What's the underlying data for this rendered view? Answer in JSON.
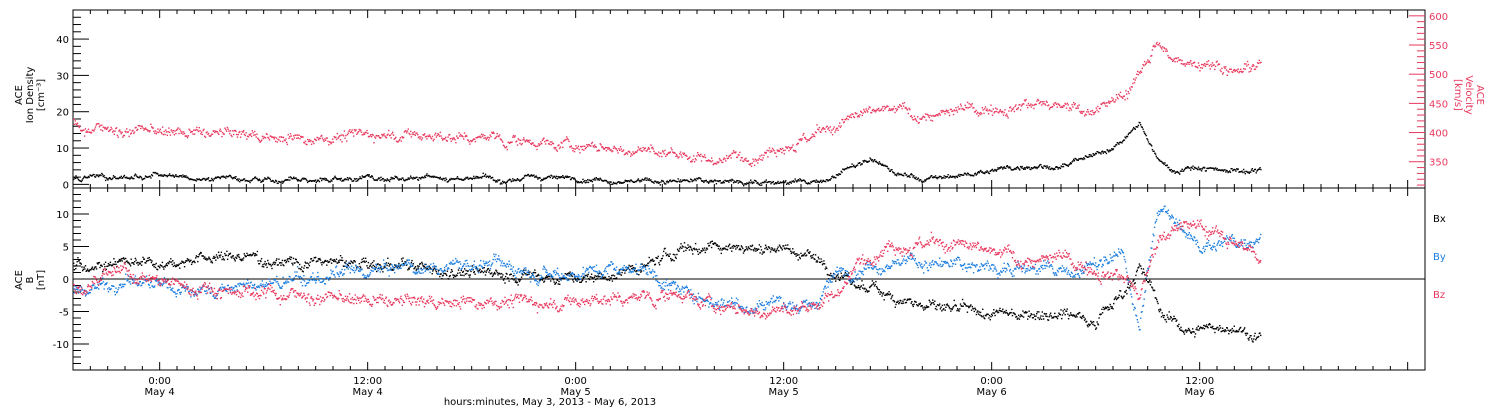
{
  "figure": {
    "x_axis_title": "hours:minutes, May  3, 2013 - May  6, 2013",
    "x_ticks": [
      {
        "time": "0:00",
        "date": "May 4",
        "hour": 24
      },
      {
        "time": "12:00",
        "date": "May 4",
        "hour": 36
      },
      {
        "time": "0:00",
        "date": "May 5",
        "hour": 48
      },
      {
        "time": "12:00",
        "date": "May 5",
        "hour": 60
      },
      {
        "time": "0:00",
        "date": "May 6",
        "hour": 72
      },
      {
        "time": "12:00",
        "date": "May 6",
        "hour": 84
      }
    ],
    "x_range_hours": [
      19,
      97
    ],
    "colors": {
      "black": "#000000",
      "pink": "#e8385e",
      "blue": "#1e7fe0"
    }
  },
  "chart_data": [
    {
      "type": "scatter",
      "panel": "top",
      "title": "",
      "ylabel_left": [
        "ACE",
        "Ion Density",
        "[cm⁻³]"
      ],
      "ylabel_right": [
        "ACE",
        "Velocity",
        "[km/s]"
      ],
      "ylim_left": [
        -1,
        48
      ],
      "ylim_right": [
        305,
        610
      ],
      "yticks_left": [
        0,
        10,
        20,
        30,
        40
      ],
      "yticks_right": [
        350,
        400,
        450,
        500,
        550,
        600
      ],
      "series": [
        {
          "axis": "left",
          "color": "#000000",
          "x": [
            19,
            22,
            25,
            28,
            31,
            34,
            37,
            40,
            43,
            46,
            48,
            50,
            52,
            54,
            56,
            58,
            60,
            62,
            63.5,
            65,
            66.5,
            68,
            70,
            72,
            74,
            76,
            78,
            79.5,
            80.5,
            81.5,
            82.5,
            84,
            86,
            87.5
          ],
          "y": [
            1.5,
            2,
            2.5,
            2,
            1.5,
            1.5,
            2,
            2,
            1.5,
            2,
            2,
            1.5,
            1,
            1,
            1,
            1,
            0.8,
            0.6,
            4,
            7,
            3,
            1.5,
            2.5,
            4,
            5.5,
            5,
            8,
            12,
            17,
            7,
            4,
            5,
            4,
            4
          ]
        },
        {
          "axis": "right",
          "color": "#e8385e",
          "x": [
            19,
            20,
            22,
            25,
            28,
            31,
            34,
            37,
            40,
            43,
            46,
            48,
            50,
            52,
            54,
            56,
            58,
            60,
            61.5,
            63,
            64.5,
            66,
            68,
            70,
            72,
            74,
            76,
            78,
            79.5,
            80.5,
            81.5,
            82.5,
            84,
            86,
            87.5
          ],
          "y": [
            420,
            410,
            405,
            400,
            398,
            392,
            395,
            400,
            393,
            390,
            385,
            378,
            373,
            368,
            365,
            355,
            362,
            385,
            392,
            410,
            430,
            440,
            430,
            435,
            445,
            455,
            440,
            445,
            460,
            500,
            560,
            520,
            525,
            510,
            520
          ]
        }
      ]
    },
    {
      "type": "scatter",
      "panel": "bottom",
      "title": "",
      "ylabel_left": [
        "ACE",
        "B",
        "[nT]"
      ],
      "ylim": [
        -14,
        14
      ],
      "yticks": [
        -10,
        -5,
        0,
        5,
        10
      ],
      "zero_line": true,
      "legend": [
        "Bx",
        "By",
        "Bz"
      ],
      "legend_placement": "right",
      "series": [
        {
          "name": "Bx",
          "color": "#000000",
          "x": [
            19,
            22,
            25,
            28,
            31,
            34,
            37,
            40,
            43,
            46,
            48,
            50,
            52,
            54,
            56,
            58,
            60,
            62,
            64,
            66,
            68,
            70,
            72,
            74,
            76,
            78,
            79.5,
            80.5,
            82,
            83.5,
            85,
            86.5,
            87.5
          ],
          "y": [
            2,
            3,
            3,
            3.5,
            3,
            2.5,
            2,
            1.5,
            1,
            0.5,
            0,
            0.5,
            2,
            4.5,
            5.5,
            5,
            5,
            3,
            -1,
            -2,
            -4,
            -5,
            -5.5,
            -5,
            -5,
            -6,
            -2,
            2,
            -6,
            -8,
            -7,
            -8,
            -9
          ]
        },
        {
          "name": "By",
          "color": "#1e7fe0",
          "x": [
            19,
            22,
            25,
            28,
            31,
            34,
            37,
            40,
            43,
            46,
            48,
            50,
            52,
            54,
            56,
            58,
            60,
            61.5,
            63,
            64.5,
            66,
            68,
            70,
            72,
            74,
            76,
            78,
            79.5,
            80.5,
            81.5,
            82.5,
            84,
            86,
            87.5
          ],
          "y": [
            -2,
            0,
            -1.5,
            -1.5,
            -0.5,
            0.5,
            1.5,
            2,
            2.5,
            1.5,
            1,
            2,
            2,
            -2,
            -3,
            -4,
            -3,
            -5,
            1,
            2,
            3,
            2.5,
            2,
            2,
            2,
            1,
            2,
            4,
            -8,
            11,
            9,
            5,
            6,
            7
          ]
        },
        {
          "name": "Bz",
          "color": "#e8385e",
          "x": [
            19,
            22,
            25,
            28,
            31,
            34,
            37,
            40,
            43,
            46,
            48,
            50,
            52,
            54,
            56,
            58,
            60,
            61.5,
            63,
            64.5,
            66,
            68,
            70,
            72,
            74,
            76,
            78,
            79.5,
            80.5,
            81.5,
            82.5,
            84,
            86,
            87.5
          ],
          "y": [
            -1.5,
            1,
            -1,
            -1.5,
            -2,
            -3,
            -3.5,
            -3.5,
            -3,
            -3.5,
            -3.5,
            -3,
            -3,
            -2,
            -4,
            -5,
            -5,
            -4,
            -2,
            3,
            6,
            5.5,
            5,
            4,
            3,
            3,
            2,
            1,
            -3,
            5,
            9,
            8,
            6,
            3
          ]
        }
      ]
    }
  ]
}
